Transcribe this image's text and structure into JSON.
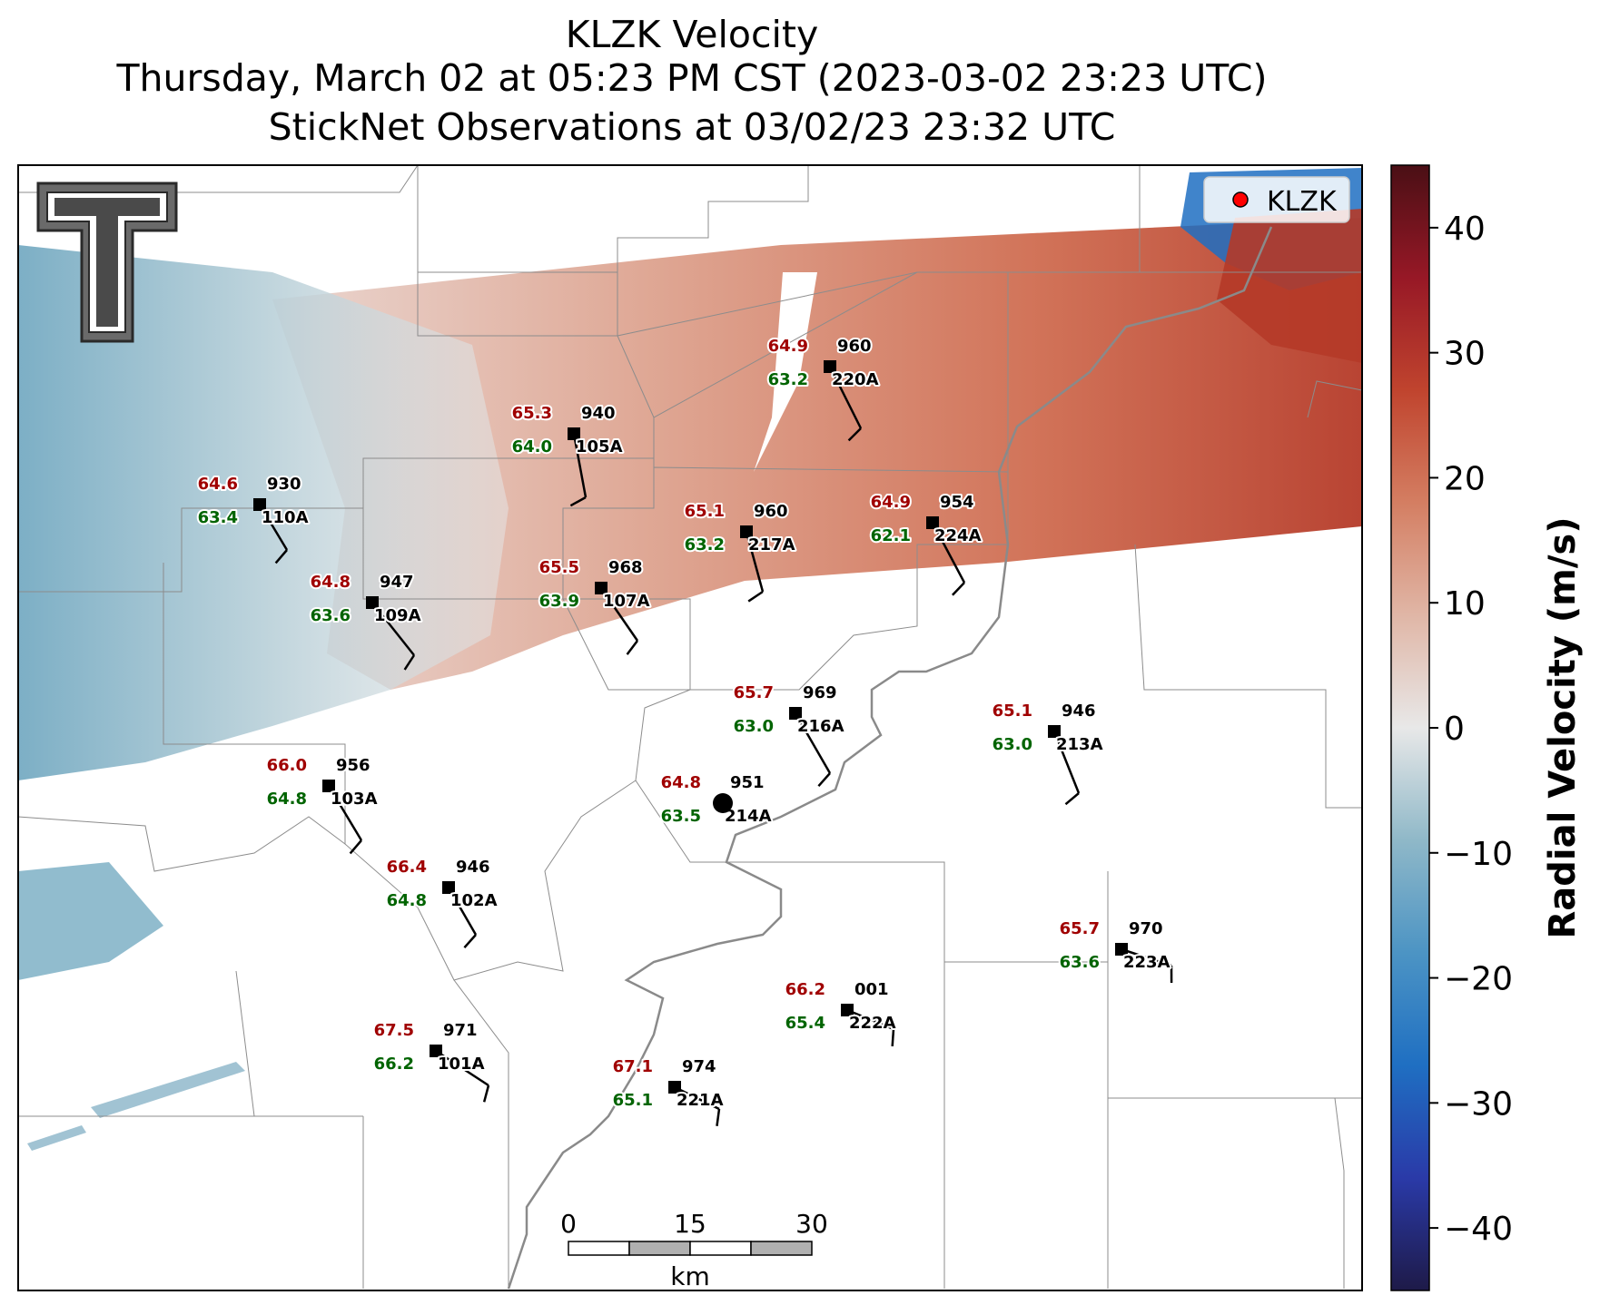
{
  "title": {
    "line1": "KLZK Velocity",
    "line2": "Thursday, March 02 at 05:23 PM CST (2023-03-02 23:23 UTC)",
    "line3": "StickNet Observations at 03/02/23 23:32 UTC"
  },
  "legend": {
    "label": "KLZK",
    "marker_color": "#ff0000"
  },
  "logo": {
    "name": "texas-tech-double-t"
  },
  "colorbar": {
    "label": "Radial Velocity (m/s)",
    "range": [
      -45,
      45
    ],
    "ticks": [
      40,
      30,
      20,
      10,
      0,
      -10,
      -20,
      -30,
      -40
    ],
    "tick_labels": [
      "40",
      "30",
      "20",
      "10",
      "0",
      "−10",
      "−20",
      "−30",
      "−40"
    ],
    "colors": [
      "#1e1a48",
      "#2a3aa8",
      "#1f6fc2",
      "#4c94c4",
      "#8fb8c8",
      "#e8e8e8",
      "#e0b6a6",
      "#d47e62",
      "#c0442e",
      "#971826",
      "#4a0f15"
    ]
  },
  "scale_bar": {
    "labels": [
      "0",
      "15",
      "30"
    ],
    "unit": "km"
  },
  "stations": [
    {
      "id": "220A",
      "temp": "64.9",
      "dew": "63.2",
      "pres": "960"
    },
    {
      "id": "105A",
      "temp": "65.3",
      "dew": "64.0",
      "pres": "940"
    },
    {
      "id": "110A",
      "temp": "64.6",
      "dew": "63.4",
      "pres": "930"
    },
    {
      "id": "217A",
      "temp": "65.1",
      "dew": "63.2",
      "pres": "960"
    },
    {
      "id": "224A",
      "temp": "64.9",
      "dew": "62.1",
      "pres": "954"
    },
    {
      "id": "107A",
      "temp": "65.5",
      "dew": "63.9",
      "pres": "968"
    },
    {
      "id": "109A",
      "temp": "64.8",
      "dew": "63.6",
      "pres": "947"
    },
    {
      "id": "216A",
      "temp": "65.7",
      "dew": "63.0",
      "pres": "969"
    },
    {
      "id": "213A",
      "temp": "65.1",
      "dew": "63.0",
      "pres": "946"
    },
    {
      "id": "103A",
      "temp": "66.0",
      "dew": "64.8",
      "pres": "956"
    },
    {
      "id": "214A",
      "temp": "64.8",
      "dew": "63.5",
      "pres": "951"
    },
    {
      "id": "102A",
      "temp": "66.4",
      "dew": "64.8",
      "pres": "946"
    },
    {
      "id": "223A",
      "temp": "65.7",
      "dew": "63.6",
      "pres": "970"
    },
    {
      "id": "222A",
      "temp": "66.2",
      "dew": "65.4",
      "pres": "001"
    },
    {
      "id": "101A",
      "temp": "67.5",
      "dew": "66.2",
      "pres": "971"
    },
    {
      "id": "221A",
      "temp": "67.1",
      "dew": "65.1",
      "pres": "974"
    }
  ],
  "style": {
    "temp_color": "#a00000",
    "dew_color": "#006400",
    "station_color": "#000000"
  }
}
